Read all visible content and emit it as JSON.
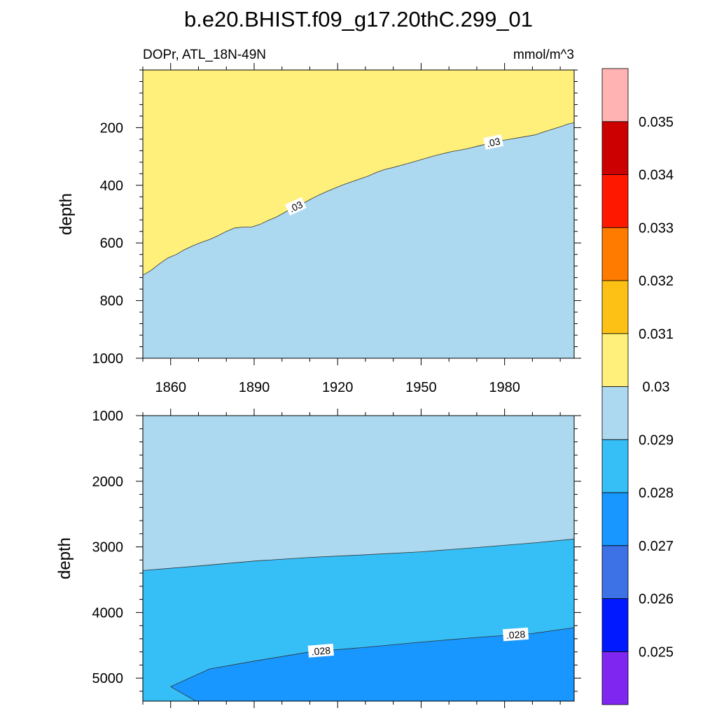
{
  "title": "b.e20.BHIST.f09_g17.20thC.299_01",
  "chart_data": [
    {
      "type": "contour",
      "variable_label": "DOPr, ATL_18N-49N",
      "units_label": "mmol/m^3",
      "xlabel": "",
      "ylabel": "depth",
      "xlim": [
        1850,
        2005
      ],
      "ylim": [
        1000,
        0
      ],
      "xticks": [
        1860,
        1890,
        1920,
        1950,
        1980
      ],
      "yticks": [
        200,
        400,
        600,
        800,
        1000
      ],
      "contour_lines": [
        {
          "level": 0.03,
          "label_text": ".03",
          "label_positions_x": [
            1905,
            1976
          ],
          "x": [
            1850,
            1853,
            1856,
            1859,
            1862,
            1865,
            1868,
            1871,
            1874,
            1877,
            1880,
            1883,
            1886,
            1889,
            1892,
            1895,
            1898,
            1901,
            1904,
            1907,
            1910,
            1913,
            1916,
            1919,
            1922,
            1925,
            1928,
            1931,
            1934,
            1937,
            1940,
            1943,
            1946,
            1949,
            1952,
            1955,
            1958,
            1961,
            1964,
            1967,
            1970,
            1973,
            1976,
            1979,
            1982,
            1985,
            1988,
            1991,
            1994,
            1997,
            2000,
            2003,
            2005
          ],
          "y": [
            712,
            695,
            672,
            652,
            640,
            623,
            610,
            598,
            588,
            575,
            560,
            548,
            545,
            545,
            536,
            522,
            510,
            494,
            478,
            466,
            450,
            435,
            422,
            410,
            398,
            388,
            378,
            368,
            355,
            345,
            338,
            330,
            322,
            314,
            305,
            297,
            290,
            283,
            278,
            272,
            265,
            258,
            251,
            245,
            240,
            235,
            230,
            225,
            215,
            206,
            197,
            187,
            183
          ]
        }
      ],
      "regions": [
        {
          "above_line": "0.03-0.031",
          "below_line": "0.029-0.03"
        }
      ]
    },
    {
      "type": "contour",
      "xlabel": "",
      "ylabel": "depth",
      "xlim": [
        1850,
        2005
      ],
      "ylim": [
        5350,
        1000
      ],
      "yticks": [
        1000,
        2000,
        3000,
        4000,
        5000
      ],
      "contour_lines": [
        {
          "level": 0.029,
          "label_text": "",
          "x": [
            1850,
            1870,
            1890,
            1910,
            1930,
            1950,
            1970,
            1990,
            2005
          ],
          "y": [
            3360,
            3290,
            3215,
            3160,
            3120,
            3075,
            3010,
            2940,
            2880
          ]
        },
        {
          "level": 0.028,
          "label_text": ".028",
          "label_positions_x": [
            1914,
            1984
          ],
          "x": [
            1860,
            1874,
            1890,
            1910,
            1930,
            1950,
            1970,
            1990,
            2005
          ],
          "y": [
            5130,
            4860,
            4740,
            4600,
            4530,
            4450,
            4380,
            4320,
            4230
          ]
        }
      ],
      "regions": [
        {
          "above_line": "0.029-0.03",
          "between_lines": "0.028-0.029",
          "below_line": "0.027-0.028"
        }
      ],
      "min_depth_region_left": {
        "x_start": 1860,
        "x_end": 1869,
        "y_top": 5130,
        "y_bottom": 5350
      }
    }
  ],
  "colorbar": {
    "labels": [
      "0.025",
      "0.026",
      "0.027",
      "0.028",
      "0.029",
      "0.03",
      "0.031",
      "0.032",
      "0.033",
      "0.034",
      "0.035"
    ],
    "colors_bottom_to_top": [
      "#7f27f0",
      "#0019ff",
      "#3d71e6",
      "#1797ff",
      "#36bff7",
      "#add9f0",
      "#fff07b",
      "#fdc015",
      "#ff7b00",
      "#ff1800",
      "#cc0000",
      "#ffb3b3"
    ]
  }
}
